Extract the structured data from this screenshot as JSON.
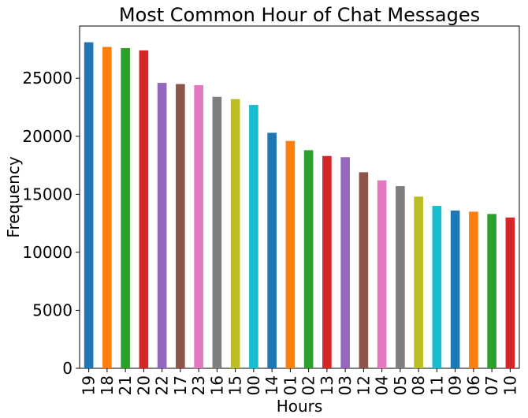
{
  "chart_data": {
    "type": "bar",
    "title": "Most Common Hour of Chat Messages",
    "xlabel": "Hours",
    "ylabel": "Frequency",
    "ylim": [
      0,
      29500
    ],
    "yticks": [
      0,
      5000,
      10000,
      15000,
      20000,
      25000
    ],
    "grid": false,
    "categories": [
      "19",
      "18",
      "21",
      "20",
      "22",
      "17",
      "23",
      "16",
      "15",
      "00",
      "14",
      "01",
      "02",
      "13",
      "03",
      "12",
      "04",
      "05",
      "08",
      "11",
      "09",
      "06",
      "07",
      "10"
    ],
    "values": [
      28100,
      27700,
      27600,
      27400,
      24600,
      24500,
      24400,
      23400,
      23200,
      22700,
      20300,
      19600,
      18800,
      18300,
      18200,
      16900,
      16200,
      15700,
      14800,
      14000,
      13600,
      13500,
      13300,
      13000
    ],
    "colors": [
      "#1f77b4",
      "#ff7f0e",
      "#2ca02c",
      "#d62728",
      "#9467bd",
      "#8c564b",
      "#e377c2",
      "#7f7f7f",
      "#bcbd22",
      "#17becf"
    ]
  }
}
